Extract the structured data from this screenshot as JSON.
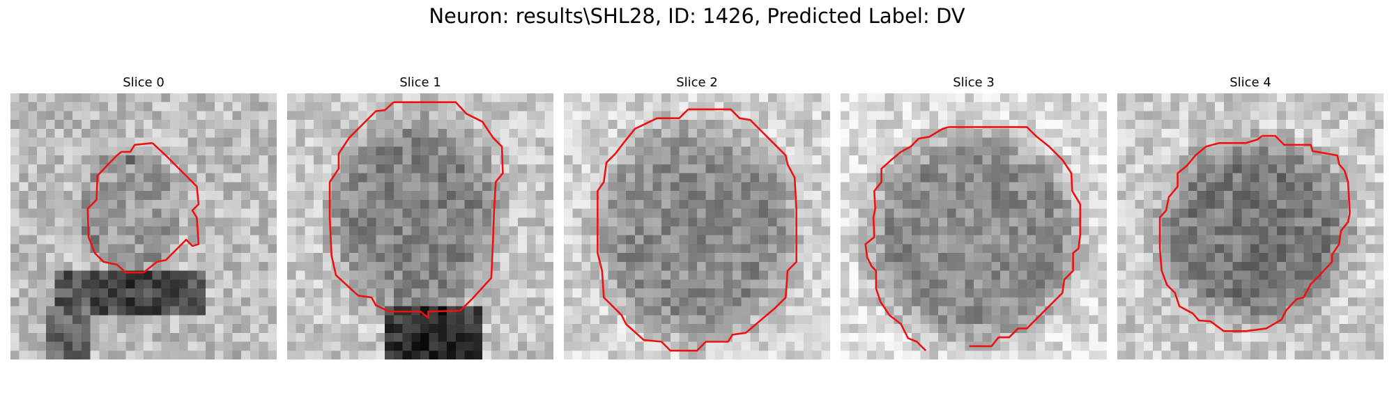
{
  "figure": {
    "title": "Neuron: results\\SHL28, ID: 1426, Predicted Label: DV"
  },
  "slices": [
    {
      "title": "Slice 0"
    },
    {
      "title": "Slice 1"
    },
    {
      "title": "Slice 2"
    },
    {
      "title": "Slice 3"
    },
    {
      "title": "Slice 4"
    }
  ],
  "colors": {
    "contour": "#ee1111",
    "background": "#ffffff"
  }
}
